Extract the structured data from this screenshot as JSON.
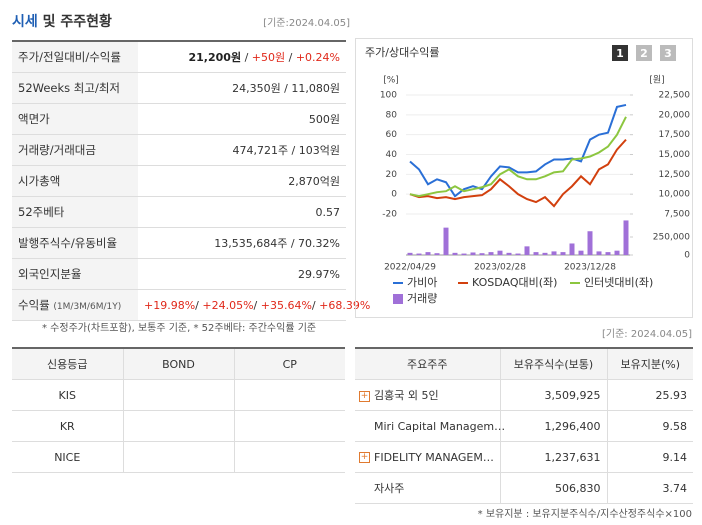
{
  "header": {
    "title_highlight": "시세",
    "title_rest": "및 주주현황",
    "date": "[기준:2024.04.05]"
  },
  "summary": {
    "rows": [
      {
        "label": "주가/전일대비/수익률",
        "value": [
          "21,200원",
          " / ",
          "+50원",
          " / ",
          "+0.24%"
        ]
      },
      {
        "label": "52Weeks 최고/최저",
        "value": [
          "24,350원 / 11,080원"
        ]
      },
      {
        "label": "액면가",
        "value": [
          "500원"
        ]
      },
      {
        "label": "거래량/거래대금",
        "value": [
          "474,721주 / 103억원"
        ]
      },
      {
        "label": "시가총액",
        "value": [
          "2,870억원"
        ]
      },
      {
        "label": "52주베타",
        "value": [
          "0.57"
        ]
      },
      {
        "label": "발행주식수/유동비율",
        "value": [
          "13,535,684주 / 70.32%"
        ]
      },
      {
        "label": "외국인지분율",
        "value": [
          "29.97%"
        ]
      },
      {
        "label": "수익률",
        "sub": "(1M/3M/6M/1Y)",
        "value": [
          "+19.98%",
          "/ ",
          "+24.05%",
          "/ ",
          "+35.64%",
          "/ ",
          "+68.39%"
        ]
      }
    ],
    "note": "* 수정주가(차트포함), 보통주 기준, * 52주베타: 주간수익률 기준"
  },
  "chart_data": {
    "type": "line",
    "title": "주가/상대수익률",
    "buttons": [
      "1",
      "2",
      "3"
    ],
    "ylabel": "[%]",
    "y2label": "[원]",
    "categories": [
      "2022/04/29",
      null,
      null,
      null,
      null,
      null,
      null,
      null,
      null,
      null,
      "2023/02/28",
      null,
      null,
      null,
      null,
      null,
      null,
      null,
      null,
      null,
      "2023/12/28",
      null,
      null,
      null,
      null
    ],
    "ylim": [
      -20,
      100
    ],
    "yticks": [
      100,
      80,
      60,
      40,
      20,
      0,
      -20
    ],
    "y2lim": [
      7500,
      22500
    ],
    "y2ticks": [
      {
        "value": 22500,
        "label": "22,500"
      },
      {
        "value": 20000,
        "label": "20,000"
      },
      {
        "value": 17500,
        "label": "17,500"
      },
      {
        "value": 15000,
        "label": "15,000"
      },
      {
        "value": 12500,
        "label": "12,500"
      },
      {
        "value": 10000,
        "label": "10,000"
      },
      {
        "value": 7500,
        "label": "7,500"
      }
    ],
    "y3lim": [
      0,
      500000
    ],
    "y3ticks": [
      {
        "value": 250000,
        "label": "250,000"
      },
      0
    ],
    "grid": true,
    "series": [
      {
        "name": "가비아",
        "color": "#2a6fd6",
        "values": [
          33,
          25,
          10,
          15,
          12,
          -2,
          5,
          8,
          5,
          18,
          28,
          27,
          22,
          22,
          23,
          30,
          35,
          35,
          36,
          33,
          55,
          60,
          62,
          88,
          90
        ]
      },
      {
        "name": "KOSDAQ대비(좌)",
        "color": "#d2400e",
        "values": [
          0,
          -3,
          -2,
          -4,
          -3,
          -5,
          -3,
          -2,
          -1,
          5,
          15,
          8,
          0,
          -5,
          -8,
          -3,
          -12,
          0,
          8,
          18,
          10,
          25,
          30,
          45,
          55
        ]
      },
      {
        "name": "인터넷대비(좌)",
        "color": "#8cc63f",
        "values": [
          0,
          -2,
          0,
          2,
          3,
          8,
          3,
          5,
          7,
          10,
          20,
          25,
          18,
          15,
          15,
          18,
          22,
          23,
          35,
          36,
          38,
          42,
          48,
          60,
          78
        ]
      },
      {
        "name": "거래량",
        "color": "#a070d8",
        "type": "bar",
        "axis": "y3",
        "values": [
          30000,
          20000,
          40000,
          25000,
          380000,
          30000,
          20000,
          35000,
          25000,
          40000,
          60000,
          30000,
          20000,
          120000,
          40000,
          30000,
          50000,
          40000,
          160000,
          60000,
          330000,
          50000,
          40000,
          60000,
          480000
        ]
      }
    ]
  },
  "credit": {
    "headers": [
      "신용등급",
      "BOND",
      "CP"
    ],
    "rows": [
      [
        "KIS"
      ],
      [
        "KR"
      ],
      [
        "NICE"
      ]
    ]
  },
  "holders": {
    "date": "[기준: 2024.04.05]",
    "headers": [
      "주요주주",
      "보유주식수(보통)",
      "보유지분(%)"
    ],
    "rows": [
      {
        "name": "김홍국 외 5인",
        "shares": "3,509,925",
        "pct": "25.93",
        "icon": true
      },
      {
        "name": "Miri Capital Managem…",
        "shares": "1,296,400",
        "pct": "9.58",
        "icon": false
      },
      {
        "name": "FIDELITY MANAGEM…",
        "shares": "1,237,631",
        "pct": "9.14",
        "icon": true
      },
      {
        "name": "자사주",
        "shares": "506,830",
        "pct": "3.74",
        "icon": false
      }
    ],
    "note": "* 보유지분 : 보유지분주식수/지수산정주식수×100"
  }
}
